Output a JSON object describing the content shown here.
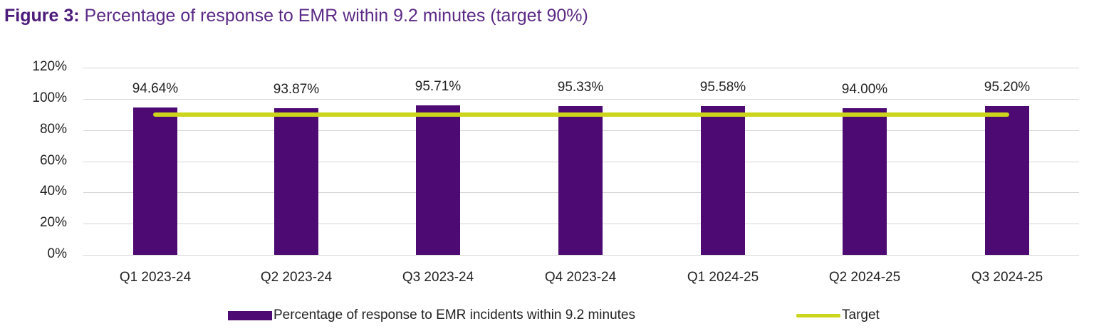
{
  "title": {
    "prefix": "Figure 3:",
    "text": " Percentage of response to EMR within 9.2 minutes (target 90%)"
  },
  "legend": {
    "bar_label": "Percentage of response to EMR incidents within 9.2 minutes",
    "line_label": "Target"
  },
  "colors": {
    "bar": "#4d0a72",
    "target": "#cbd51c",
    "title": "#5b2a86"
  },
  "y_ticks": [
    "120%",
    "100%",
    "80%",
    "60%",
    "40%",
    "20%",
    "0%"
  ],
  "categories": [
    "Q1 2023-24",
    "Q2 2023-24",
    "Q3 2023-24",
    "Q4 2023-24",
    "Q1 2024-25",
    "Q2 2024-25",
    "Q3 2024-25"
  ],
  "data_labels": [
    "94.64%",
    "93.87%",
    "95.71%",
    "95.33%",
    "95.58%",
    "94.00%",
    "95.20%"
  ],
  "chart_data": {
    "type": "bar",
    "title": "Figure 3: Percentage of response to EMR within 9.2 minutes (target 90%)",
    "categories": [
      "Q1 2023-24",
      "Q2 2023-24",
      "Q3 2023-24",
      "Q4 2023-24",
      "Q1 2024-25",
      "Q2 2024-25",
      "Q3 2024-25"
    ],
    "series": [
      {
        "name": "Percentage of response to EMR incidents within 9.2 minutes",
        "type": "bar",
        "values": [
          94.64,
          93.87,
          95.71,
          95.33,
          95.58,
          94.0,
          95.2
        ]
      },
      {
        "name": "Target",
        "type": "line",
        "values": [
          90,
          90,
          90,
          90,
          90,
          90,
          90
        ]
      }
    ],
    "xlabel": "",
    "ylabel": "",
    "ylim": [
      0,
      120
    ],
    "yticks": [
      0,
      20,
      40,
      60,
      80,
      100,
      120
    ],
    "ytick_format": "percent",
    "grid": true,
    "legend_position": "bottom",
    "data_labels": true
  }
}
